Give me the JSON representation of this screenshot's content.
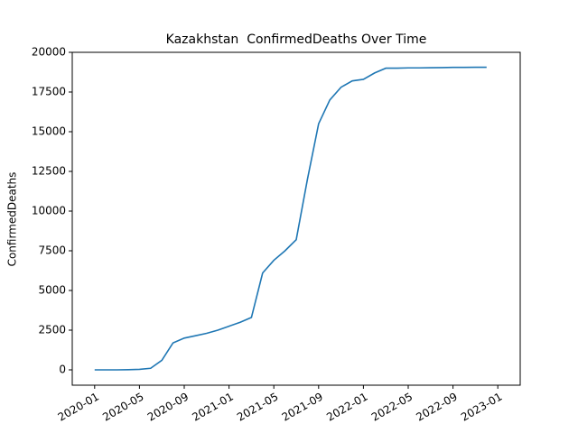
{
  "chart_data": {
    "type": "line",
    "title": "Kazakhstan  ConfirmedDeaths Over Time",
    "ylabel": "ConfirmedDeaths",
    "x": [
      "2020-01",
      "2020-02",
      "2020-03",
      "2020-04",
      "2020-05",
      "2020-06",
      "2020-07",
      "2020-08",
      "2020-09",
      "2020-10",
      "2020-11",
      "2020-12",
      "2021-01",
      "2021-02",
      "2021-03",
      "2021-04",
      "2021-05",
      "2021-06",
      "2021-07",
      "2021-08",
      "2021-09",
      "2021-10",
      "2021-11",
      "2021-12",
      "2022-01",
      "2022-02",
      "2022-03",
      "2022-04",
      "2022-05",
      "2022-06",
      "2022-07",
      "2022-08",
      "2022-09",
      "2022-10",
      "2022-11",
      "2022-12"
    ],
    "values": [
      0,
      0,
      0,
      10,
      30,
      100,
      600,
      1700,
      2000,
      2150,
      2300,
      2500,
      2750,
      3000,
      3300,
      6100,
      6900,
      7500,
      8200,
      12000,
      15500,
      17000,
      17800,
      18200,
      18300,
      18700,
      19000,
      19000,
      19020,
      19020,
      19030,
      19040,
      19050,
      19050,
      19060,
      19060
    ],
    "color": "#1f77b4",
    "xlim": [
      "2019-11",
      "2023-03"
    ],
    "xticks": [
      "2020-01",
      "2020-05",
      "2020-09",
      "2021-01",
      "2021-05",
      "2021-09",
      "2022-01",
      "2022-05",
      "2022-09",
      "2023-01"
    ],
    "ylim": [
      -966,
      20000
    ],
    "yticks": [
      0,
      2500,
      5000,
      7500,
      10000,
      12500,
      15000,
      17500,
      20000
    ]
  }
}
